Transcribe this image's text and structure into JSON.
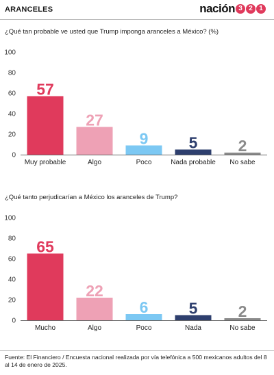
{
  "header": {
    "section": "ARANCELES",
    "brand_word": "nación",
    "brand_digits": [
      "3",
      "2",
      "1"
    ]
  },
  "colors": {
    "brand": "#e03a5c",
    "categories": [
      "#e03a5c",
      "#eea1b5",
      "#7cc8f3",
      "#2e3f6e",
      "#8a8a8a"
    ]
  },
  "chart_data": [
    {
      "type": "bar",
      "title": "¿Qué tan probable ve usted que Trump imponga aranceles a México? (%)",
      "categories": [
        "Muy probable",
        "Algo",
        "Poco",
        "Nada probable",
        "No sabe"
      ],
      "values": [
        57,
        27,
        9,
        5,
        2
      ],
      "yticks": [
        0,
        20,
        40,
        60,
        80,
        100
      ],
      "ylim": [
        0,
        100
      ],
      "grid": false,
      "legend": "none"
    },
    {
      "type": "bar",
      "title": "¿Qué tanto perjudicarían a México los aranceles de Trump?",
      "categories": [
        "Mucho",
        "Algo",
        "Poco",
        "Nada",
        "No sabe"
      ],
      "values": [
        65,
        22,
        6,
        5,
        2
      ],
      "yticks": [
        0,
        20,
        40,
        60,
        80,
        100
      ],
      "ylim": [
        0,
        100
      ],
      "grid": false,
      "legend": "none"
    }
  ],
  "footer": {
    "source": "Fuente: El Financiero / Encuesta nacional realizada por vía telefónica a 500 mexicanos adultos del 8 al 14 de enero de 2025."
  }
}
